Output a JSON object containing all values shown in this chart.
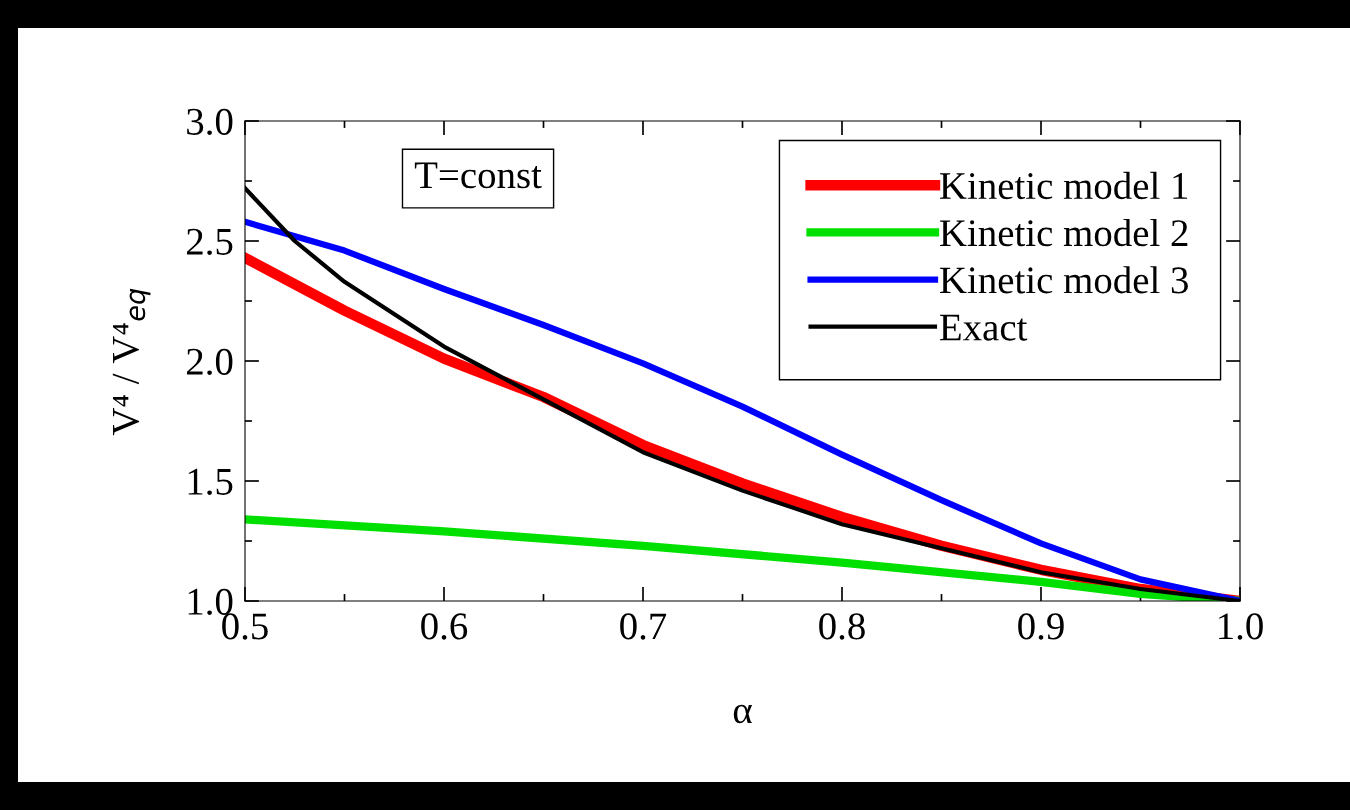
{
  "chart_data": {
    "type": "line",
    "xlabel": "α",
    "ylabel": "V⁴ / V⁴$_{eq}$",
    "annotations": [
      "T=const"
    ],
    "xlim": [
      0.5,
      1.0
    ],
    "xticks": [
      {
        "value": 0.5,
        "label": "0.5"
      },
      {
        "value": 0.6,
        "label": "0.6"
      },
      {
        "value": 0.7,
        "label": "0.7"
      },
      {
        "value": 0.8,
        "label": "0.8"
      },
      {
        "value": 0.9,
        "label": "0.9"
      },
      {
        "value": 1.0,
        "label": "1.0"
      }
    ],
    "ylim": [
      1.0,
      3.0
    ],
    "yticks": [
      {
        "value": 1.0,
        "label": "1.0"
      },
      {
        "value": 1.5,
        "label": "1.5"
      },
      {
        "value": 2.0,
        "label": "2.0"
      },
      {
        "value": 2.5,
        "label": "2.5"
      },
      {
        "value": 3.0,
        "label": "3.0"
      }
    ],
    "grid": false,
    "legend": "top right",
    "marker": "none",
    "line_style": "solid",
    "series": [
      {
        "name": "Kinetic model 1",
        "color": "#ff0000",
        "x": [
          0.5,
          0.55,
          0.6,
          0.65,
          0.7,
          0.75,
          0.8,
          0.85,
          0.9,
          0.95,
          1.0
        ],
        "values": [
          2.43,
          2.21,
          2.01,
          1.85,
          1.65,
          1.49,
          1.35,
          1.23,
          1.13,
          1.05,
          1.0
        ]
      },
      {
        "name": "Kinetic model 2",
        "color": "#00e000",
        "x": [
          0.5,
          0.6,
          0.7,
          0.8,
          0.9,
          0.95,
          1.0
        ],
        "values": [
          1.34,
          1.29,
          1.23,
          1.16,
          1.08,
          1.03,
          1.0
        ]
      },
      {
        "name": "Kinetic model 3",
        "color": "#0000ff",
        "x": [
          0.5,
          0.55,
          0.6,
          0.65,
          0.7,
          0.75,
          0.8,
          0.85,
          0.9,
          0.95,
          1.0
        ],
        "values": [
          2.58,
          2.46,
          2.3,
          2.15,
          1.99,
          1.81,
          1.61,
          1.42,
          1.24,
          1.09,
          1.0
        ]
      },
      {
        "name": "Exact",
        "color": "#000000",
        "x": [
          0.5,
          0.525,
          0.55,
          0.6,
          0.65,
          0.7,
          0.75,
          0.8,
          0.85,
          0.9,
          0.95,
          1.0
        ],
        "values": [
          2.72,
          2.5,
          2.33,
          2.06,
          1.84,
          1.62,
          1.46,
          1.32,
          1.22,
          1.12,
          1.05,
          1.0
        ]
      }
    ]
  }
}
